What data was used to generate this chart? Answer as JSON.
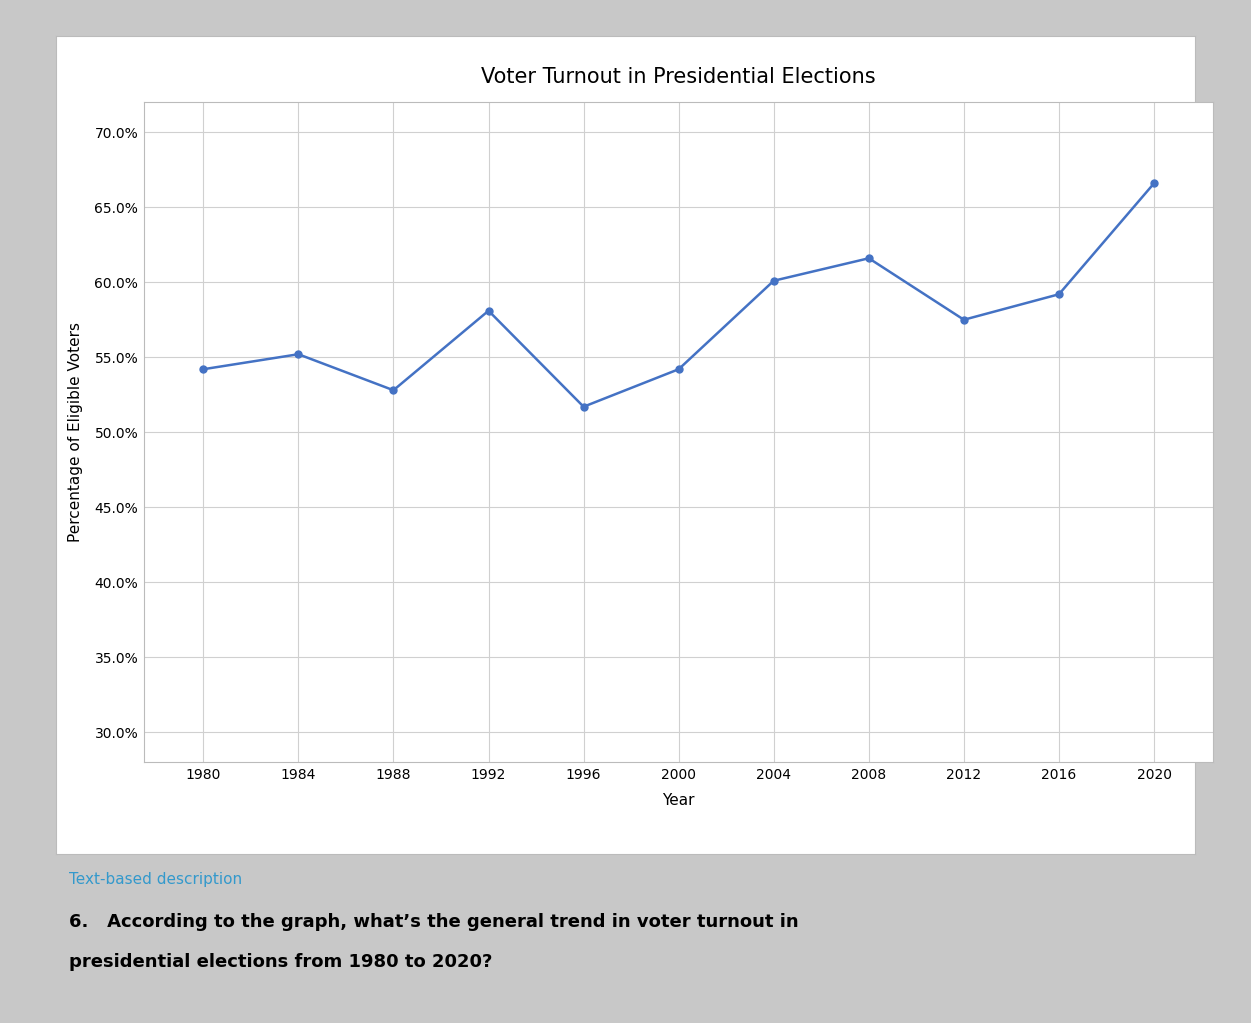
{
  "title": "Voter Turnout in Presidential Elections",
  "xlabel": "Year",
  "ylabel": "Percentage of Eligible Voters",
  "years": [
    1980,
    1984,
    1988,
    1992,
    1996,
    2000,
    2004,
    2008,
    2012,
    2016,
    2020
  ],
  "turnout": [
    54.2,
    55.2,
    52.8,
    58.1,
    51.7,
    54.2,
    60.1,
    61.6,
    57.5,
    59.2,
    66.6
  ],
  "line_color": "#4472C4",
  "marker": "o",
  "marker_size": 5,
  "line_width": 1.8,
  "ylim_min": 28.0,
  "ylim_max": 72.0,
  "yticks": [
    30.0,
    35.0,
    40.0,
    45.0,
    50.0,
    55.0,
    60.0,
    65.0,
    70.0
  ],
  "xticks": [
    1980,
    1984,
    1988,
    1992,
    1996,
    2000,
    2004,
    2008,
    2012,
    2016,
    2020
  ],
  "grid_color": "#d0d0d0",
  "chart_bg": "#ffffff",
  "outer_bg": "#c8c8c8",
  "white_panel_bg": "#ffffff",
  "title_fontsize": 15,
  "axis_label_fontsize": 11,
  "tick_fontsize": 10,
  "below_link_text": "Text-based description",
  "below_link_color": "#3399cc",
  "question_line1": "6.   According to the graph, what’s the general trend in voter turnout in",
  "question_line2": "presidential elections from 1980 to 2020?"
}
